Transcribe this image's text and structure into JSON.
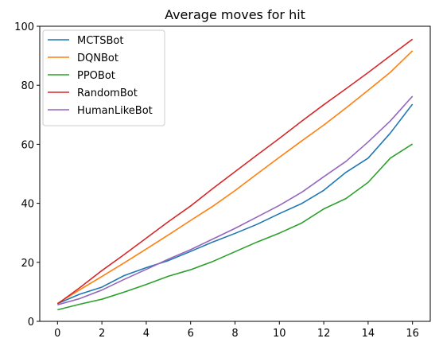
{
  "chart_data": {
    "type": "line",
    "title": "Average moves for hit",
    "xlabel": "",
    "ylabel": "",
    "xlim": [
      -0.8,
      16.8
    ],
    "ylim": [
      0,
      100
    ],
    "xticks": [
      0,
      2,
      4,
      6,
      8,
      10,
      12,
      14,
      16
    ],
    "yticks": [
      0,
      20,
      40,
      60,
      80,
      100
    ],
    "grid": false,
    "legend_position": "upper-left",
    "x": [
      0,
      1,
      2,
      3,
      4,
      5,
      6,
      7,
      8,
      9,
      10,
      11,
      12,
      13,
      14,
      15,
      16
    ],
    "series": [
      {
        "name": "MCTSBot",
        "color": "#1f77b4",
        "values": [
          6.0,
          9.2,
          11.6,
          15.5,
          18.2,
          20.6,
          23.7,
          26.9,
          29.8,
          32.9,
          36.5,
          39.9,
          44.4,
          50.5,
          55.3,
          63.8,
          73.6
        ]
      },
      {
        "name": "DQNBot",
        "color": "#ff7f0e",
        "values": [
          6.1,
          10.7,
          15.2,
          19.8,
          24.5,
          29.3,
          34.2,
          39.0,
          44.3,
          50.0,
          55.6,
          61.1,
          66.5,
          72.3,
          78.3,
          84.4,
          91.7
        ]
      },
      {
        "name": "PPOBot",
        "color": "#2ca02c",
        "values": [
          3.9,
          5.8,
          7.5,
          9.9,
          12.5,
          15.3,
          17.5,
          20.3,
          23.6,
          26.9,
          29.9,
          33.3,
          38.1,
          41.6,
          47.1,
          55.3,
          60.1
        ]
      },
      {
        "name": "RandomBot",
        "color": "#d62728",
        "values": [
          5.9,
          11.4,
          17.2,
          22.6,
          28.2,
          33.8,
          39.1,
          45.0,
          50.7,
          56.4,
          62.0,
          67.8,
          73.4,
          78.8,
          84.3,
          90.0,
          95.6
        ]
      },
      {
        "name": "HumanLikeBot",
        "color": "#9467bd",
        "values": [
          5.6,
          7.7,
          10.6,
          14.2,
          17.6,
          21.1,
          24.3,
          27.9,
          31.5,
          35.4,
          39.3,
          43.7,
          49.0,
          54.2,
          60.8,
          67.9,
          76.3
        ]
      }
    ]
  }
}
